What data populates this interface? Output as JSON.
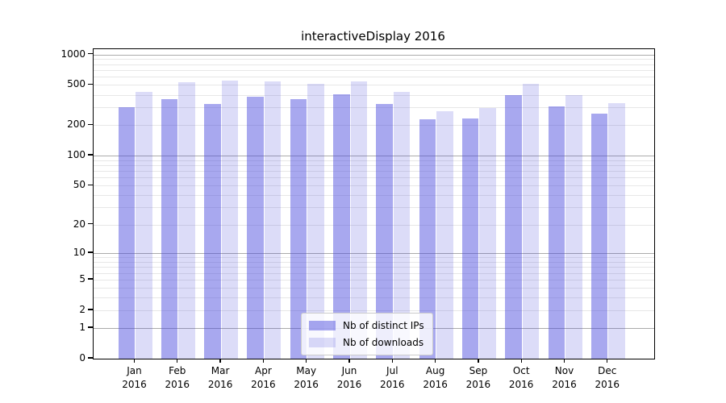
{
  "chart_data": {
    "type": "bar",
    "title": "interactiveDisplay 2016",
    "categories": [
      "Jan",
      "Feb",
      "Mar",
      "Apr",
      "May",
      "Jun",
      "Jul",
      "Aug",
      "Sep",
      "Oct",
      "Nov",
      "Dec"
    ],
    "x_year_label": "2016",
    "series": [
      {
        "name": "Nb of distinct IPs",
        "color": "rgba(70,70,220,0.47)",
        "color_solid_hex": "#aaaaf0",
        "values": [
          300,
          360,
          325,
          380,
          360,
          405,
          325,
          230,
          235,
          400,
          305,
          260
        ]
      },
      {
        "name": "Nb of downloads",
        "color": "rgba(70,70,220,0.19)",
        "color_solid_hex": "#dcdcf8",
        "values": [
          425,
          530,
          555,
          540,
          510,
          545,
          430,
          275,
          295,
          515,
          400,
          330
        ]
      }
    ],
    "xlabel": "",
    "ylabel": "",
    "y_scale": "log1p",
    "ylim": [
      0,
      1130
    ],
    "y_ticks": [
      0,
      1,
      2,
      5,
      10,
      20,
      50,
      100,
      200,
      500,
      1000
    ],
    "y_major_gridlines": [
      1,
      10,
      100,
      1000
    ],
    "y_minor_gridline_decades": [
      1,
      10,
      100
    ],
    "grid": true,
    "legend_position": "lower center"
  },
  "colors": {
    "major_grid": "#ababab",
    "minor_grid": "#e7e7e7",
    "spine": "#000000",
    "legend_border": "#cccccc",
    "text": "#000000"
  }
}
